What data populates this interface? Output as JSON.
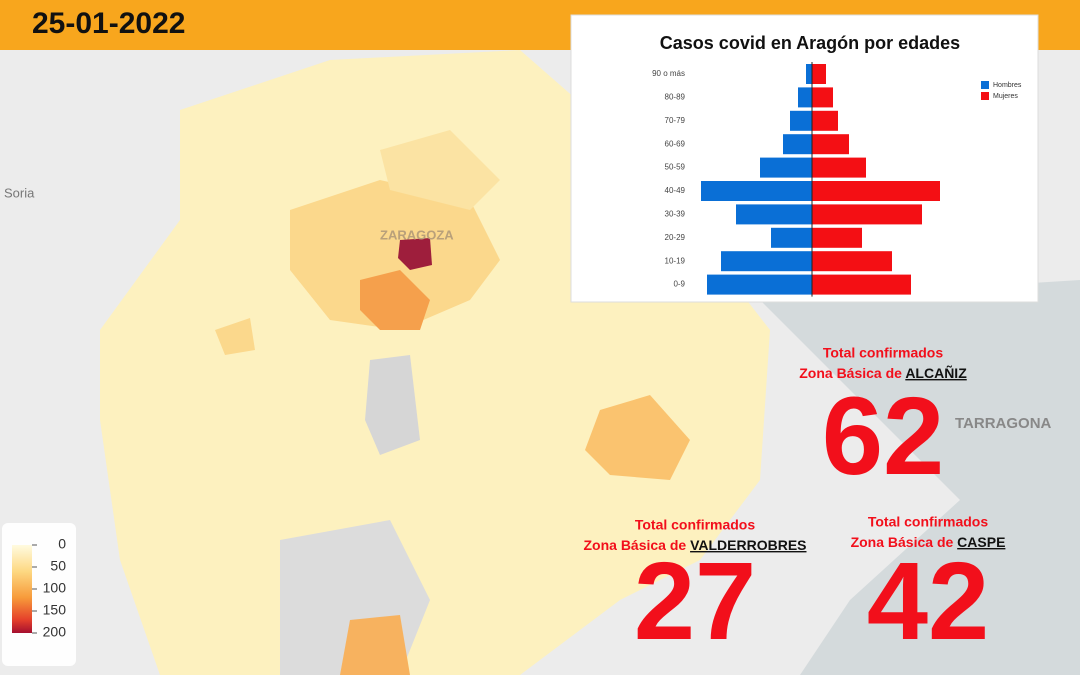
{
  "header": {
    "date": "25-01-2022"
  },
  "map_labels": {
    "soria": "Soria",
    "tarragona": "TARRAGONA",
    "zaragoza": "ZARAGOZA"
  },
  "map_legend": {
    "ticks": [
      0,
      50,
      100,
      150,
      200
    ]
  },
  "chart_data": {
    "type": "pyramid",
    "title": "Casos covid en Aragón por edades",
    "categories": [
      "90 o más",
      "80-89",
      "70-79",
      "60-69",
      "50-59",
      "40-49",
      "30-39",
      "20-29",
      "10-19",
      "0-9"
    ],
    "series": [
      {
        "name": "Hombres",
        "color": "#0a6fd6",
        "values": [
          6,
          14,
          22,
          29,
          52,
          111,
          76,
          41,
          91,
          105
        ]
      },
      {
        "name": "Mujeres",
        "color": "#f40f14",
        "values": [
          14,
          21,
          26,
          37,
          54,
          128,
          110,
          50,
          80,
          99
        ]
      }
    ],
    "legend": "top-right"
  },
  "callouts": [
    {
      "heading": "Total confirmados",
      "zone_prefix": "Zona Básica de",
      "zone": "ALCAÑIZ",
      "total": "62"
    },
    {
      "heading": "Total confirmados",
      "zone_prefix": "Zona Básica de",
      "zone": "VALDERROBRES",
      "total": "27"
    },
    {
      "heading": "Total confirmados",
      "zone_prefix": "Zona Básica de",
      "zone": "CASPE",
      "total": "42"
    }
  ]
}
